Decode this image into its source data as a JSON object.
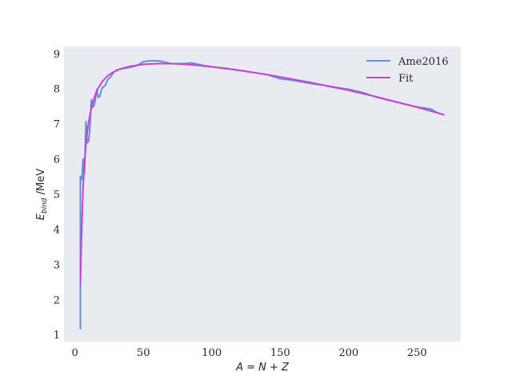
{
  "chart_data": {
    "type": "line",
    "xlabel": "A = N + Z",
    "ylabel": "E_bind /MeV",
    "xlim": [
      -8,
      282
    ],
    "ylim": [
      0.8,
      9.2
    ],
    "xticks": [
      0,
      50,
      100,
      150,
      200,
      250
    ],
    "yticks": [
      1,
      2,
      3,
      4,
      5,
      6,
      7,
      8,
      9
    ],
    "grid": false,
    "background": "#eaeaf2",
    "legend_position": "top-right",
    "series": [
      {
        "name": "Ame2016",
        "color": "#5b94d1",
        "x": [
          4,
          4,
          4,
          5,
          6,
          7,
          8,
          9,
          10,
          11,
          12,
          13,
          14,
          15,
          16,
          17,
          18,
          20,
          22,
          24,
          26,
          28,
          30,
          35,
          40,
          45,
          50,
          55,
          60,
          65,
          70,
          75,
          80,
          85,
          90,
          95,
          100,
          110,
          120,
          130,
          140,
          150,
          160,
          170,
          180,
          190,
          200,
          210,
          220,
          230,
          240,
          250,
          260,
          265,
          270
        ],
        "y": [
          1.15,
          2.6,
          5.5,
          5.4,
          6.0,
          5.6,
          7.06,
          6.46,
          6.5,
          6.9,
          7.68,
          7.47,
          7.52,
          7.7,
          7.98,
          7.75,
          7.77,
          8.03,
          8.08,
          8.26,
          8.33,
          8.45,
          8.52,
          8.57,
          8.6,
          8.65,
          8.76,
          8.79,
          8.79,
          8.76,
          8.71,
          8.71,
          8.71,
          8.73,
          8.69,
          8.65,
          8.62,
          8.58,
          8.52,
          8.46,
          8.4,
          8.28,
          8.23,
          8.16,
          8.1,
          8.04,
          7.98,
          7.89,
          7.76,
          7.66,
          7.57,
          7.48,
          7.42,
          7.31,
          7.25
        ]
      },
      {
        "name": "Fit",
        "color": "#cf3fd1",
        "x": [
          4,
          5,
          6,
          7,
          8,
          9,
          10,
          12,
          14,
          16,
          18,
          20,
          24,
          28,
          32,
          36,
          40,
          45,
          50,
          55,
          60,
          70,
          80,
          90,
          100,
          110,
          120,
          130,
          140,
          150,
          160,
          170,
          180,
          190,
          200,
          210,
          220,
          230,
          240,
          250,
          260,
          270
        ],
        "y": [
          2.4,
          4.0,
          5.2,
          5.9,
          6.4,
          6.75,
          7.05,
          7.45,
          7.73,
          7.93,
          8.08,
          8.2,
          8.37,
          8.47,
          8.54,
          8.59,
          8.63,
          8.66,
          8.69,
          8.7,
          8.71,
          8.71,
          8.69,
          8.66,
          8.62,
          8.57,
          8.52,
          8.46,
          8.4,
          8.33,
          8.26,
          8.19,
          8.11,
          8.03,
          7.95,
          7.86,
          7.77,
          7.67,
          7.57,
          7.47,
          7.36,
          7.25
        ]
      }
    ]
  }
}
